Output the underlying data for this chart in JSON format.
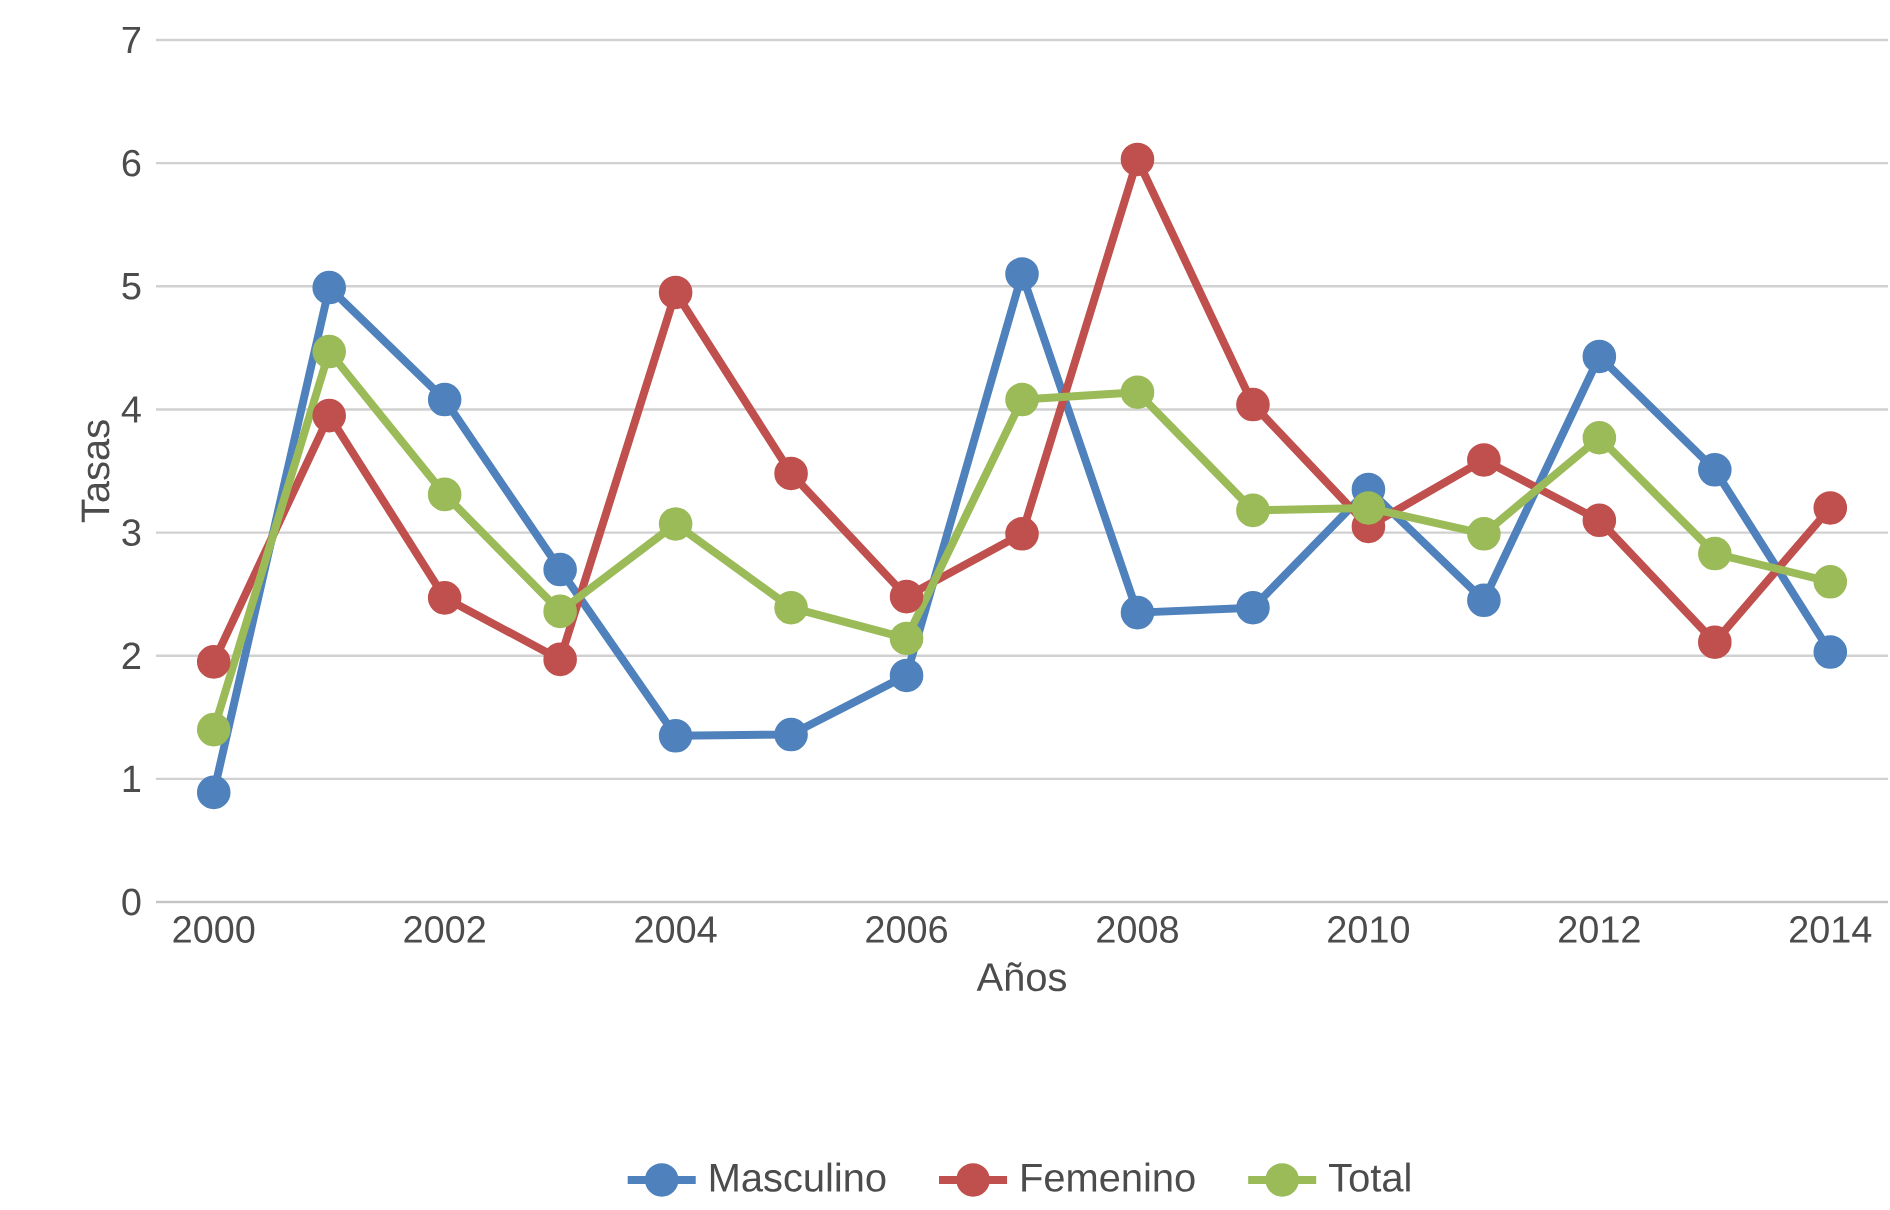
{
  "chart_data": {
    "type": "line",
    "xlabel": "Años",
    "ylabel": "Tasas",
    "x": [
      2000,
      2001,
      2002,
      2003,
      2004,
      2005,
      2006,
      2007,
      2008,
      2009,
      2010,
      2011,
      2012,
      2013,
      2014
    ],
    "series": [
      {
        "name": "Masculino",
        "color": "#4f81bd",
        "values": [
          0.89,
          4.99,
          4.08,
          2.7,
          1.35,
          1.36,
          1.84,
          5.1,
          2.35,
          2.39,
          3.35,
          2.45,
          4.43,
          3.51,
          2.03
        ]
      },
      {
        "name": "Femenino",
        "color": "#c0504d",
        "values": [
          1.95,
          3.95,
          2.47,
          1.97,
          4.95,
          3.48,
          2.48,
          2.99,
          6.03,
          4.04,
          3.05,
          3.59,
          3.1,
          2.11,
          3.2
        ]
      },
      {
        "name": "Total",
        "color": "#9bbb59",
        "values": [
          1.4,
          4.47,
          3.31,
          2.36,
          3.07,
          2.39,
          2.14,
          4.08,
          4.14,
          3.18,
          3.2,
          2.99,
          3.77,
          2.83,
          2.6
        ]
      }
    ],
    "xlim": [
      1999.5,
      2014.5
    ],
    "xticks": [
      2000,
      2002,
      2004,
      2006,
      2008,
      2010,
      2012,
      2014
    ],
    "ylim": [
      0,
      7
    ],
    "yticks": [
      0,
      1,
      2,
      3,
      4,
      5,
      6,
      7
    ],
    "grid": "y",
    "legend": "bottom",
    "marker": "circle",
    "line_style": "solid"
  }
}
